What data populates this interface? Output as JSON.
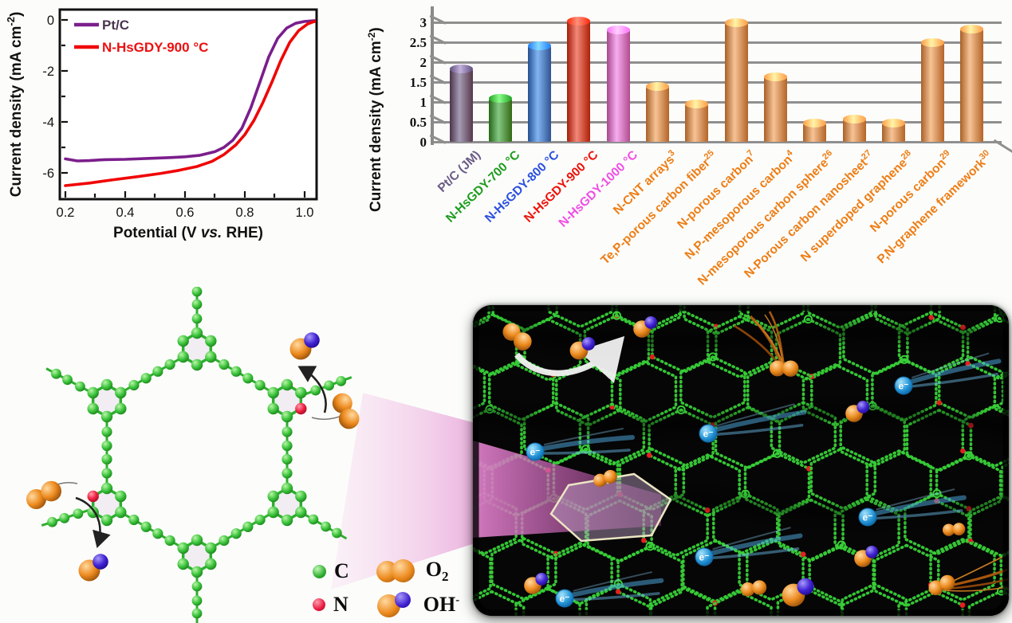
{
  "lsv_chart": {
    "ylabel": {
      "main": "Current density (mA cm",
      "sup": "-2",
      "end": ")"
    },
    "xlabel": {
      "pre": "Potential (V ",
      "italic": "vs.",
      "end": " RHE)"
    },
    "x_ticks": [
      "0.2",
      "0.4",
      "0.6",
      "0.8",
      "1.0"
    ],
    "y_ticks": [
      "0",
      "-2",
      "-4",
      "-6"
    ],
    "legend": [
      {
        "label": "Pt/C",
        "color": "#7b1e8c",
        "text_color": "#4a3550"
      },
      {
        "label": "N-HsGDY-900 °C",
        "color": "#f00505",
        "text_color": "#ee0f0f"
      }
    ]
  },
  "bar_chart": {
    "ylabel": {
      "main": "Current density (mA cm",
      "sup": "-2",
      "end": ")"
    },
    "y_ticks": [
      "0",
      "0.5",
      "1",
      "1.5",
      "2",
      "2.5",
      "3"
    ],
    "bars": [
      {
        "label": "Pt/C (JM)",
        "sup": "",
        "value": 1.85,
        "color": "#5b4a78",
        "label_color": "#6a5b86"
      },
      {
        "label": "N-HsGDY-700 °C",
        "sup": "",
        "value": 1.1,
        "color": "#1f9a1f",
        "label_color": "#1e9c1e"
      },
      {
        "label": "N-HsGDY-800 °C",
        "sup": "",
        "value": 2.42,
        "color": "#1b76e8",
        "label_color": "#2b4fe0"
      },
      {
        "label": "N-HsGDY-900 °C",
        "sup": "",
        "value": 3.05,
        "color": "#e8250b",
        "label_color": "#ee1208"
      },
      {
        "label": "N-HsGDY-1000 °C",
        "sup": "",
        "value": 2.82,
        "color": "#ee6ae4",
        "label_color": "#f04ee4"
      },
      {
        "label": "N-CNT arrays",
        "sup": "3",
        "value": 1.4,
        "color": "#f0923f",
        "label_color": "#ee7d15"
      },
      {
        "label": "Te,P-porous carbon fiber",
        "sup": "25",
        "value": 0.97,
        "color": "#f0923f",
        "label_color": "#ee7d15"
      },
      {
        "label": "N-porous carbon",
        "sup": "7",
        "value": 3.0,
        "color": "#f0923f",
        "label_color": "#ee7d15"
      },
      {
        "label": "N,P-mesoporous carbon",
        "sup": "4",
        "value": 1.65,
        "color": "#f0923f",
        "label_color": "#ee7d15"
      },
      {
        "label": "N-mesoporous carbon sphere",
        "sup": "26",
        "value": 0.48,
        "color": "#f0923f",
        "label_color": "#ee7d15"
      },
      {
        "label": "N-Porous carbon nanosheet",
        "sup": "27",
        "value": 0.58,
        "color": "#f0923f",
        "label_color": "#ee7d15"
      },
      {
        "label": "N superdoped graphene",
        "sup": "28",
        "value": 0.49,
        "color": "#f0923f",
        "label_color": "#ee7d15"
      },
      {
        "label": "N-porous carbon",
        "sup": "29",
        "value": 2.5,
        "color": "#f0923f",
        "label_color": "#ee7d15"
      },
      {
        "label": "P,N-graphene framework",
        "sup": "30",
        "value": 2.85,
        "color": "#f0923f",
        "label_color": "#ee7d15"
      }
    ]
  },
  "chart_data": [
    {
      "type": "line",
      "title": "",
      "xlabel": "Potential (V vs. RHE)",
      "ylabel": "Current density (mA cm⁻²)",
      "xlim": [
        0.2,
        1.05
      ],
      "ylim": [
        -7,
        0.3
      ],
      "x_ticks": [
        0.2,
        0.4,
        0.6,
        0.8,
        1.0
      ],
      "y_ticks": [
        0,
        -2,
        -4,
        -6
      ],
      "legend_position": "upper-left",
      "grid": false,
      "series": [
        {
          "name": "Pt/C",
          "color": "#7b1e8c",
          "points": [
            [
              0.2,
              -5.45
            ],
            [
              0.24,
              -5.53
            ],
            [
              0.28,
              -5.52
            ],
            [
              0.33,
              -5.48
            ],
            [
              0.4,
              -5.47
            ],
            [
              0.48,
              -5.43
            ],
            [
              0.55,
              -5.4
            ],
            [
              0.6,
              -5.37
            ],
            [
              0.65,
              -5.31
            ],
            [
              0.7,
              -5.17
            ],
            [
              0.73,
              -5.0
            ],
            [
              0.76,
              -4.72
            ],
            [
              0.79,
              -4.25
            ],
            [
              0.82,
              -3.45
            ],
            [
              0.85,
              -2.45
            ],
            [
              0.88,
              -1.45
            ],
            [
              0.91,
              -0.72
            ],
            [
              0.94,
              -0.32
            ],
            [
              0.97,
              -0.13
            ],
            [
              1.0,
              -0.06
            ],
            [
              1.03,
              -0.03
            ],
            [
              1.05,
              -0.02
            ]
          ]
        },
        {
          "name": "N-HsGDY-900 °C",
          "color": "#f00505",
          "points": [
            [
              0.2,
              -6.5
            ],
            [
              0.28,
              -6.4
            ],
            [
              0.36,
              -6.27
            ],
            [
              0.44,
              -6.15
            ],
            [
              0.52,
              -6.02
            ],
            [
              0.58,
              -5.9
            ],
            [
              0.64,
              -5.75
            ],
            [
              0.69,
              -5.55
            ],
            [
              0.73,
              -5.28
            ],
            [
              0.77,
              -4.9
            ],
            [
              0.8,
              -4.5
            ],
            [
              0.83,
              -3.95
            ],
            [
              0.86,
              -3.25
            ],
            [
              0.89,
              -2.45
            ],
            [
              0.92,
              -1.6
            ],
            [
              0.95,
              -0.88
            ],
            [
              0.98,
              -0.42
            ],
            [
              1.01,
              -0.16
            ],
            [
              1.03,
              -0.07
            ],
            [
              1.05,
              -0.04
            ]
          ]
        }
      ]
    },
    {
      "type": "bar",
      "title": "",
      "ylabel": "Current density (mA cm⁻²)",
      "ylim": [
        0,
        3.2
      ],
      "y_ticks": [
        0,
        0.5,
        1,
        1.5,
        2,
        2.5,
        3
      ],
      "grid": true,
      "categories": [
        "Pt/C (JM)",
        "N-HsGDY-700 °C",
        "N-HsGDY-800 °C",
        "N-HsGDY-900 °C",
        "N-HsGDY-1000 °C",
        "N-CNT arrays³",
        "Te,P-porous carbon fiber²⁵",
        "N-porous carbon⁷",
        "N,P-mesoporous carbon⁴",
        "N-mesoporous carbon sphere²⁶",
        "N-Porous carbon nanosheet²⁷",
        "N superdoped graphene²⁸",
        "N-porous carbon²⁹",
        "P,N-graphene framework³⁰"
      ],
      "values": [
        1.85,
        1.1,
        2.42,
        3.05,
        2.82,
        1.4,
        0.97,
        3.0,
        1.65,
        0.48,
        0.58,
        0.49,
        2.5,
        2.85
      ],
      "bar_colors": [
        "#5b4a78",
        "#1f9a1f",
        "#1b76e8",
        "#e8250b",
        "#ee6ae4",
        "#f0923f",
        "#f0923f",
        "#f0923f",
        "#f0923f",
        "#f0923f",
        "#f0923f",
        "#f0923f",
        "#f0923f",
        "#f0923f"
      ]
    }
  ],
  "atom_legend": {
    "c": "C",
    "n": "N",
    "o2_main": "O",
    "o2_sub": "2",
    "oh_main": "OH",
    "oh_sup": "-"
  },
  "mechanism_panel": {
    "e_label": "e⁻"
  },
  "colors": {
    "carbon_green": "#2fae2f",
    "nitrogen_red": "#e81840",
    "oxygen_orange": "#ec8a1e",
    "hydroxide_blue": "#4020d0",
    "electron_blue": "#2da0e0",
    "beam_magenta": "#d06cc0"
  }
}
